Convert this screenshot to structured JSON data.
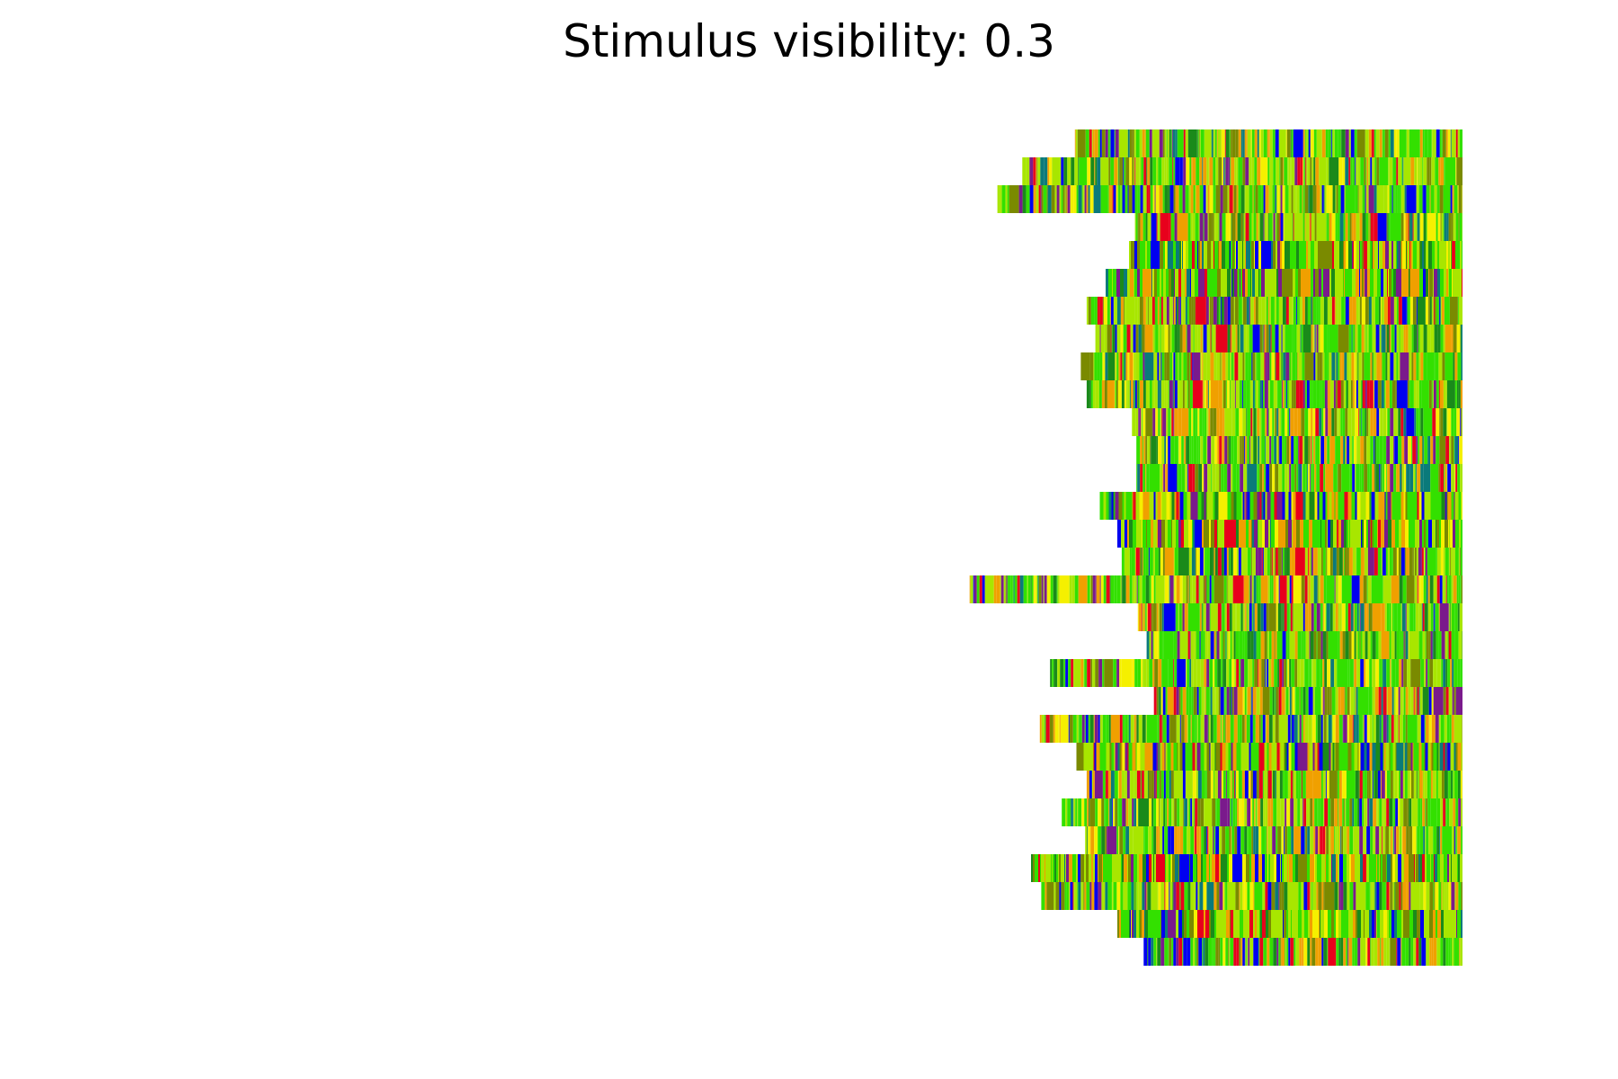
{
  "chart_data": {
    "type": "heatmap",
    "title": "Stimulus visibility: 0.3",
    "xlabel": "",
    "ylabel": "",
    "axes_visible": false,
    "grid": false,
    "row_count": 30,
    "row_end": 1.0,
    "row_starts_normalized": [
      0.735,
      0.699,
      0.682,
      0.776,
      0.772,
      0.756,
      0.743,
      0.749,
      0.739,
      0.743,
      0.774,
      0.777,
      0.777,
      0.752,
      0.764,
      0.767,
      0.663,
      0.778,
      0.784,
      0.718,
      0.789,
      0.711,
      0.736,
      0.743,
      0.726,
      0.742,
      0.705,
      0.712,
      0.764,
      0.782
    ],
    "colors": {
      "green": "#33e000",
      "yellow_green": "#a8e600",
      "olive": "#7a8a00",
      "orange": "#f0a000",
      "yellow": "#f5f000",
      "red": "#e8001c",
      "blue": "#0000f0",
      "purple": "#7a1a8c",
      "teal": "#0a7a7a",
      "dark_green": "#1a8a1a"
    }
  }
}
